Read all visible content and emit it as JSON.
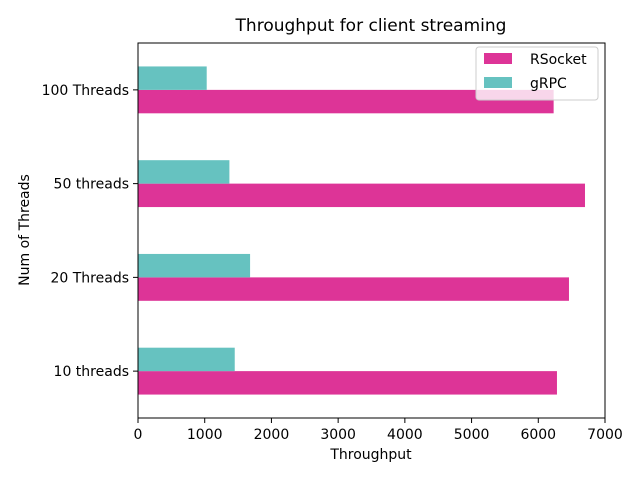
{
  "chart_data": {
    "type": "bar",
    "orientation": "horizontal",
    "title": "Throughput for client streaming",
    "xlabel": "Throughput",
    "ylabel": "Num of Threads",
    "categories": [
      "10 threads",
      "20 Threads",
      "50 threads",
      "100 Threads"
    ],
    "series": [
      {
        "name": "RSocket",
        "values": [
          6280,
          6460,
          6700,
          6230
        ],
        "color": "#dd3497"
      },
      {
        "name": "gRPC",
        "values": [
          1450,
          1680,
          1370,
          1030
        ],
        "color": "#66c2c0"
      }
    ],
    "xlim": [
      0,
      7000
    ],
    "xticks": [
      0,
      1000,
      2000,
      3000,
      4000,
      5000,
      6000,
      7000
    ],
    "grid": false,
    "legend_position": "top-right"
  }
}
